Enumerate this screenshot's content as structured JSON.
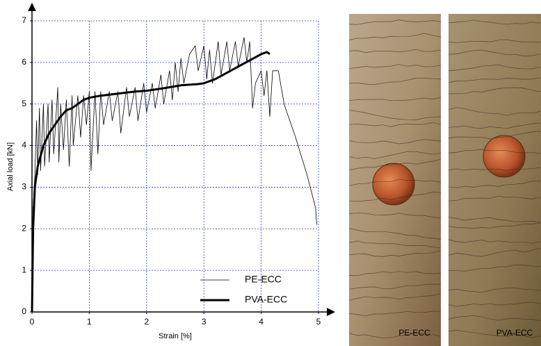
{
  "chart_data": {
    "type": "line",
    "xlabel": "Strain [%]",
    "ylabel": "Axial load [kN]",
    "xlim": [
      0,
      5
    ],
    "ylim": [
      0,
      7
    ],
    "xticks": [
      0,
      1,
      2,
      3,
      4,
      5
    ],
    "yticks": [
      0,
      1,
      2,
      3,
      4,
      5,
      6,
      7
    ],
    "grid": true,
    "grid_color": "#2a3fd0",
    "legend": "lower right",
    "series": [
      {
        "name": "PE-ECC",
        "color": "#000000",
        "linewidth": 0.8,
        "x": [
          0,
          0.02,
          0.05,
          0.08,
          0.1,
          0.13,
          0.15,
          0.2,
          0.22,
          0.28,
          0.3,
          0.35,
          0.38,
          0.45,
          0.47,
          0.5,
          0.55,
          0.6,
          0.65,
          0.7,
          0.72,
          0.8,
          0.85,
          0.9,
          0.95,
          1.0,
          1.03,
          1.1,
          1.15,
          1.2,
          1.25,
          1.35,
          1.4,
          1.5,
          1.55,
          1.65,
          1.7,
          1.8,
          1.85,
          1.95,
          2.0,
          2.1,
          2.15,
          2.25,
          2.3,
          2.4,
          2.45,
          2.5,
          2.55,
          2.6,
          2.65,
          2.75,
          2.85,
          2.9,
          3.0,
          3.05,
          3.1,
          3.15,
          3.25,
          3.3,
          3.4,
          3.45,
          3.55,
          3.6,
          3.7,
          3.75,
          3.8,
          3.85,
          3.9,
          4.0,
          4.05,
          4.1,
          4.15,
          4.2,
          4.3,
          4.4,
          4.6,
          4.8,
          4.95,
          4.97
        ],
        "values": [
          0,
          2.5,
          3.3,
          4.6,
          3.3,
          4.9,
          3.4,
          5.0,
          3.5,
          5.0,
          3.6,
          5.1,
          3.8,
          5.4,
          3.6,
          5.0,
          3.9,
          5.1,
          3.5,
          5.2,
          4.0,
          5.2,
          4.2,
          5.2,
          4.5,
          5.3,
          3.4,
          5.3,
          3.8,
          5.3,
          4.5,
          5.3,
          4.6,
          5.3,
          4.3,
          5.4,
          4.7,
          5.4,
          4.6,
          5.5,
          4.8,
          5.5,
          4.9,
          5.7,
          5.0,
          5.8,
          5.1,
          6.0,
          5.3,
          6.1,
          5.5,
          6.2,
          6.4,
          5.8,
          6.4,
          5.6,
          6.3,
          5.5,
          6.5,
          5.7,
          6.5,
          5.8,
          6.5,
          5.9,
          6.6,
          6.0,
          6.5,
          4.9,
          5.5,
          5.8,
          5.2,
          5.8,
          4.7,
          5.8,
          5.8,
          5.0,
          4.2,
          3.3,
          2.5,
          2.1
        ]
      },
      {
        "name": "PVA-ECC",
        "color": "#000000",
        "linewidth": 3,
        "x": [
          0,
          0.02,
          0.05,
          0.1,
          0.2,
          0.3,
          0.4,
          0.5,
          0.6,
          0.7,
          0.8,
          0.9,
          1.0,
          1.2,
          1.5,
          1.8,
          2.0,
          2.3,
          2.6,
          2.9,
          3.0,
          3.2,
          3.4,
          3.6,
          3.8,
          4.0,
          4.1,
          4.15
        ],
        "values": [
          0,
          2.0,
          3.0,
          3.5,
          4.0,
          4.3,
          4.5,
          4.7,
          4.85,
          4.9,
          5.0,
          5.1,
          5.15,
          5.2,
          5.25,
          5.3,
          5.32,
          5.38,
          5.45,
          5.48,
          5.5,
          5.6,
          5.75,
          5.9,
          6.05,
          6.2,
          6.25,
          6.2
        ]
      }
    ]
  },
  "photos": [
    {
      "label": "PE-ECC"
    },
    {
      "label": "PVA-ECC"
    }
  ]
}
